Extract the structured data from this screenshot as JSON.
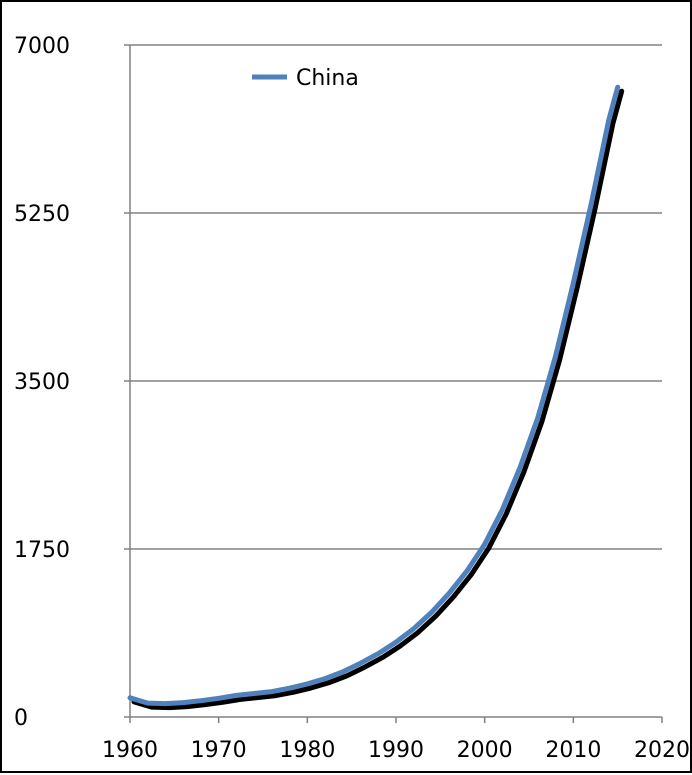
{
  "chart_data": {
    "type": "line",
    "title": "",
    "xlabel": "",
    "ylabel": "",
    "xlim": [
      1960,
      2020
    ],
    "ylim": [
      0,
      7000
    ],
    "x_ticks": [
      1960,
      1970,
      1980,
      1990,
      2000,
      2010,
      2020
    ],
    "x_tick_labels": [
      "1960",
      "1970",
      "1980",
      "1990",
      "2000",
      "2010",
      "2020"
    ],
    "y_ticks": [
      0,
      1750,
      3500,
      5250,
      7000
    ],
    "y_tick_labels": [
      "0",
      "1750",
      "3500",
      "5250",
      "7000"
    ],
    "grid": "horizontal",
    "legend_position": "top-left",
    "series": [
      {
        "name": "China",
        "color": "#4f81bd",
        "x": [
          1960,
          1962,
          1964,
          1966,
          1968,
          1970,
          1972,
          1974,
          1976,
          1978,
          1980,
          1982,
          1984,
          1986,
          1988,
          1990,
          1992,
          1994,
          1996,
          1998,
          2000,
          2002,
          2004,
          2006,
          2008,
          2010,
          2012,
          2014,
          2015
        ],
        "y": [
          200,
          145,
          140,
          150,
          170,
          195,
          225,
          245,
          265,
          300,
          345,
          400,
          470,
          560,
          660,
          780,
          920,
          1090,
          1290,
          1520,
          1800,
          2160,
          2600,
          3120,
          3760,
          4520,
          5340,
          6220,
          6560
        ]
      }
    ]
  }
}
